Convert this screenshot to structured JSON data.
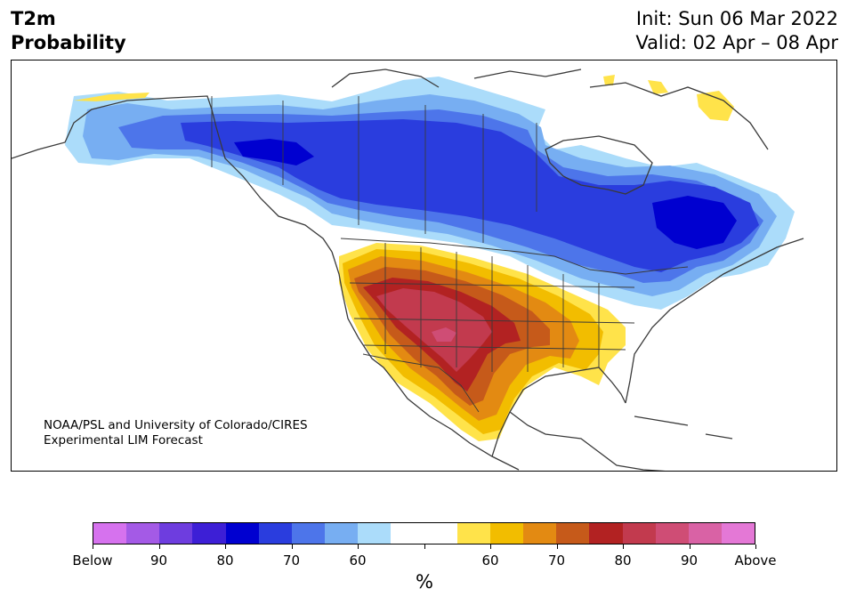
{
  "title": {
    "left_line1": "T2m",
    "left_line2": "Probability",
    "init": "Init: Sun 06 Mar 2022",
    "valid": "Valid: 02 Apr – 08 Apr"
  },
  "credit": {
    "line1": "NOAA/PSL and University of Colorado/CIRES",
    "line2": "Experimental LIM Forecast"
  },
  "colorbar": {
    "colors": [
      "#d672ee",
      "#a45ae6",
      "#6e3ddf",
      "#3d1fd6",
      "#0000d0",
      "#2a3dde",
      "#4d75ea",
      "#77aef2",
      "#abdcfa",
      "#ffffff",
      "#ffffff",
      "#ffe34a",
      "#f2bd00",
      "#e38a12",
      "#c65a1a",
      "#b22222",
      "#c23a4e",
      "#cf4d75",
      "#d962a5",
      "#e478d6"
    ],
    "tick_labels": [
      "Below",
      "90",
      "80",
      "70",
      "60",
      "",
      "60",
      "70",
      "80",
      "90",
      "Above"
    ],
    "unit": "%"
  },
  "legend_colors": {
    "cold_strong": "#0000d0",
    "cold": "#2a3dde",
    "cool": "#4d75ea",
    "cool_light": "#77aef2",
    "cool_faint": "#abdcfa",
    "warm_faint": "#ffe34a",
    "warm": "#f2bd00",
    "warm_orange": "#e38a12",
    "hot": "#c65a1a",
    "hot_red": "#b22222",
    "hot_crimson": "#c23a4e",
    "hot_pink": "#cf4d75"
  }
}
